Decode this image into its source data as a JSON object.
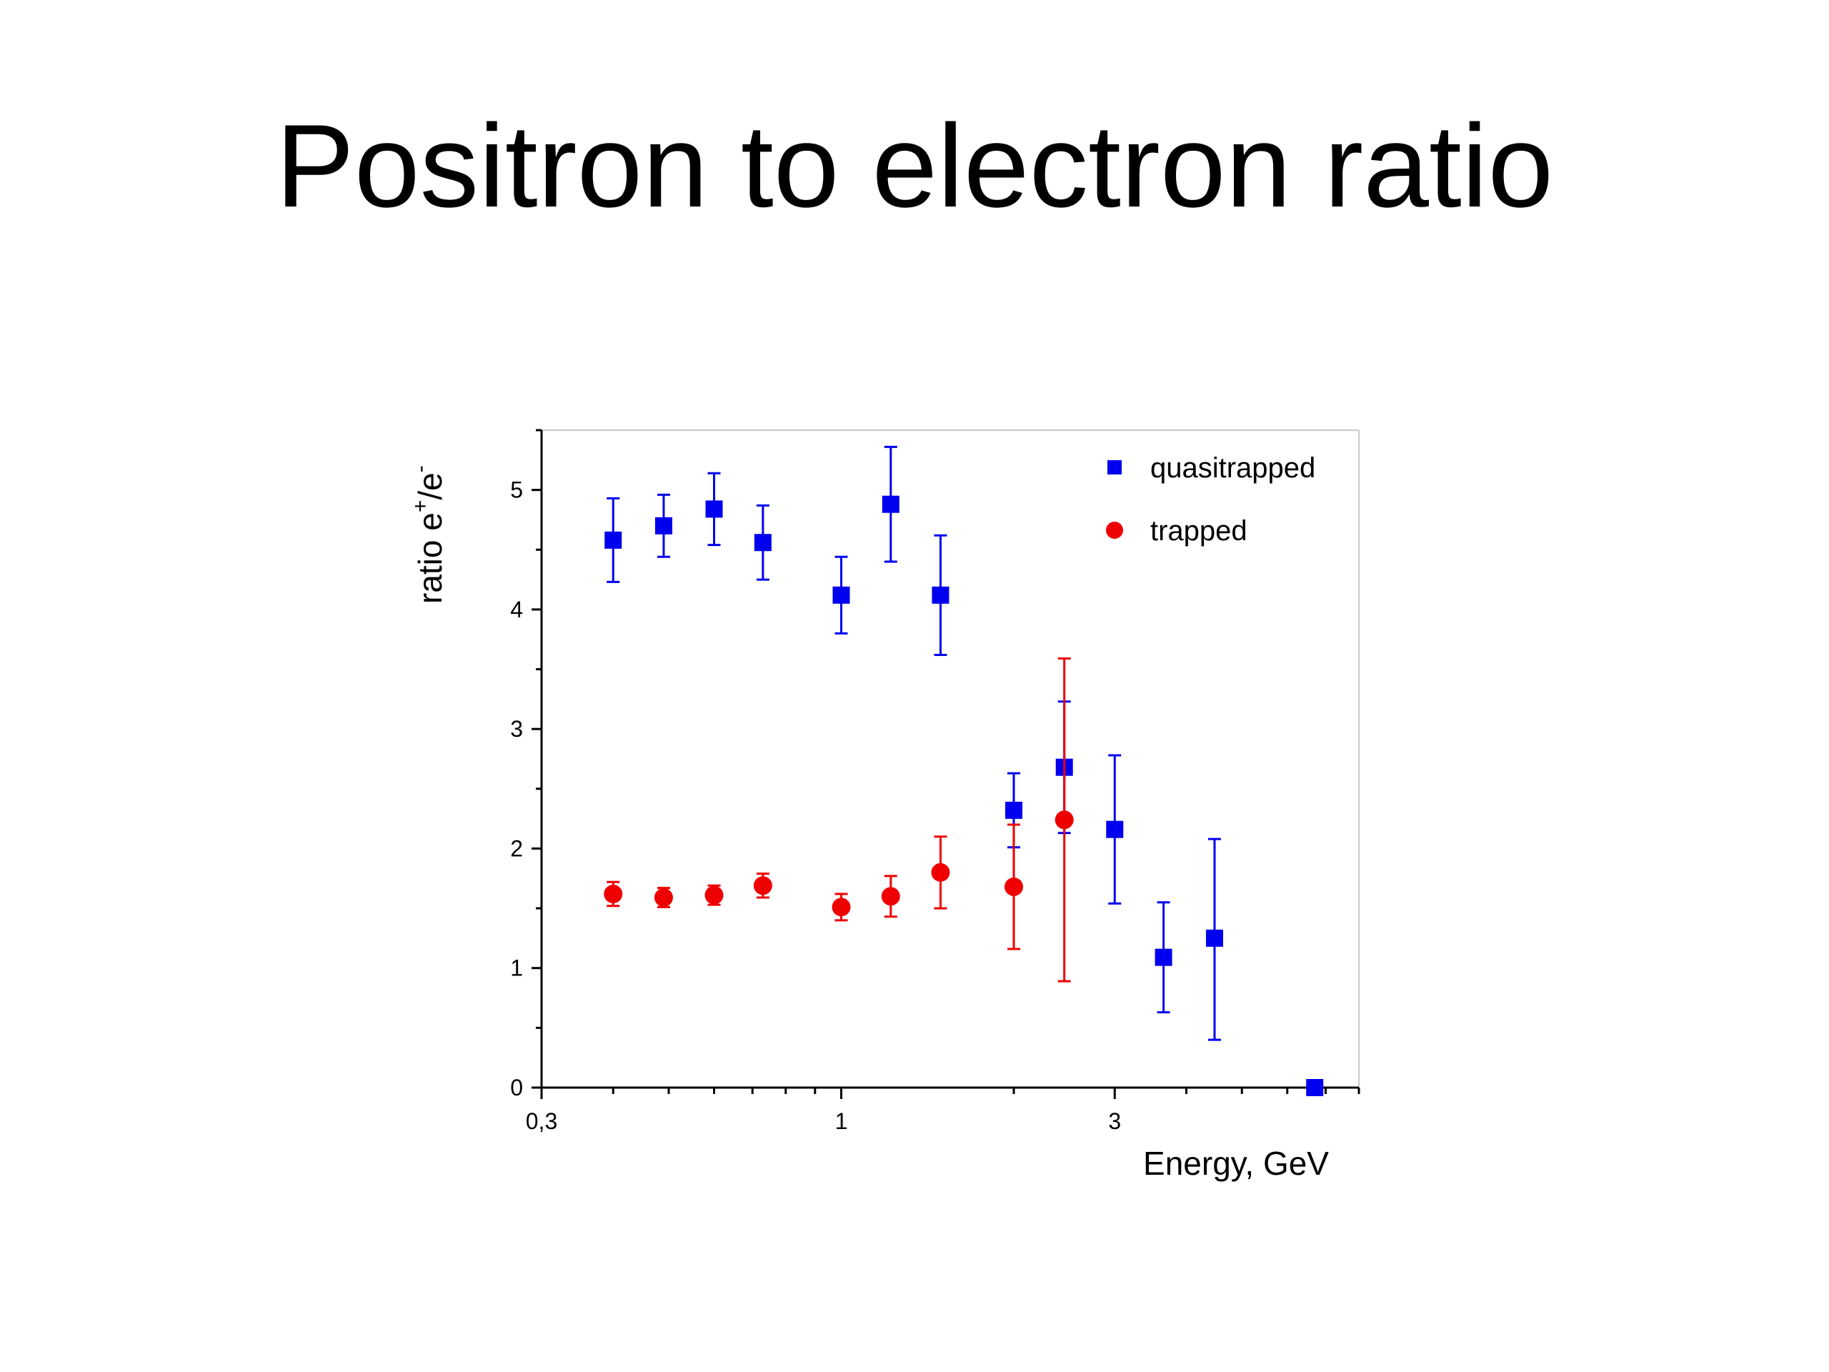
{
  "slide": {
    "title": "Positron to electron ratio"
  },
  "chart_data": {
    "type": "scatter",
    "title": "",
    "xlabel": "Energy, GeV",
    "ylabel_main": "ratio e",
    "ylabel_sup1": "+",
    "ylabel_mid": "/e",
    "ylabel_sup2": "-",
    "x_scale": "log",
    "xlim": [
      0.3,
      8.0
    ],
    "ylim": [
      0,
      5.5
    ],
    "x_ticks": [
      {
        "value": 0.3,
        "label": "0,3"
      },
      {
        "value": 1,
        "label": "1"
      },
      {
        "value": 3,
        "label": "3"
      }
    ],
    "y_ticks": [
      {
        "value": 0,
        "label": "0"
      },
      {
        "value": 1,
        "label": "1"
      },
      {
        "value": 2,
        "label": "2"
      },
      {
        "value": 3,
        "label": "3"
      },
      {
        "value": 4,
        "label": "4"
      },
      {
        "value": 5,
        "label": "5"
      }
    ],
    "grid": false,
    "legend_position": "top-right",
    "series": [
      {
        "name": "quasitrapped",
        "marker": "square",
        "color": "#0000ee",
        "x": [
          0.4,
          0.49,
          0.6,
          0.73,
          1.0,
          1.22,
          1.49,
          2.0,
          2.45,
          3.0,
          3.65,
          4.48,
          6.7
        ],
        "y": [
          4.58,
          4.7,
          4.84,
          4.56,
          4.12,
          4.88,
          4.12,
          2.32,
          2.68,
          2.16,
          1.09,
          1.25,
          0.0
        ],
        "err_low": [
          0.35,
          0.26,
          0.3,
          0.31,
          0.32,
          0.48,
          0.5,
          0.31,
          0.55,
          0.62,
          0.46,
          0.85,
          0.0
        ],
        "err_high": [
          0.35,
          0.26,
          0.3,
          0.31,
          0.32,
          0.48,
          0.5,
          0.31,
          0.55,
          0.62,
          0.46,
          0.83,
          0.0
        ]
      },
      {
        "name": "trapped",
        "marker": "circle",
        "color": "#ee0000",
        "x": [
          0.4,
          0.49,
          0.6,
          0.73,
          1.0,
          1.22,
          1.49,
          2.0,
          2.45
        ],
        "y": [
          1.62,
          1.59,
          1.61,
          1.69,
          1.51,
          1.6,
          1.8,
          1.68,
          2.24
        ],
        "err_low": [
          0.1,
          0.08,
          0.08,
          0.1,
          0.11,
          0.17,
          0.3,
          0.52,
          1.35
        ],
        "err_high": [
          0.1,
          0.08,
          0.08,
          0.1,
          0.11,
          0.17,
          0.3,
          0.52,
          1.35
        ]
      }
    ]
  }
}
